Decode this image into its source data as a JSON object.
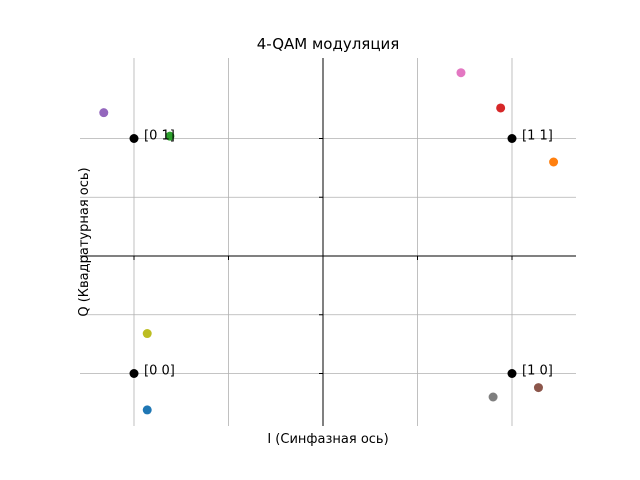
{
  "chart_data": {
    "type": "scatter",
    "title": "4-QAM модуляция",
    "xlabel": "I (Синфазная ось)",
    "ylabel": "Q (Квадратурная ось)",
    "xlim": [
      -1.7,
      1.7
    ],
    "ylim": [
      -1.45,
      1.45
    ],
    "grid": true,
    "xgrid_values": [
      -1,
      -0.5,
      0.5,
      1
    ],
    "ygrid_values": [
      -1,
      -0.5,
      0.5,
      1
    ],
    "constellation": [
      {
        "x": -1,
        "y": 1,
        "label": "[0 1]"
      },
      {
        "x": 1,
        "y": 1,
        "label": "[1 1]"
      },
      {
        "x": -1,
        "y": -1,
        "label": "[0 0]"
      },
      {
        "x": 1,
        "y": -1,
        "label": "[1 0]"
      }
    ],
    "received": [
      {
        "x": -0.93,
        "y": -1.31,
        "color": "#1f77b4"
      },
      {
        "x": 1.22,
        "y": 0.8,
        "color": "#ff7f0e"
      },
      {
        "x": -0.81,
        "y": 1.02,
        "color": "#2ca02c"
      },
      {
        "x": 0.94,
        "y": 1.26,
        "color": "#d62728"
      },
      {
        "x": -1.16,
        "y": 1.22,
        "color": "#9467bd"
      },
      {
        "x": 1.14,
        "y": -1.12,
        "color": "#8c564b"
      },
      {
        "x": 0.73,
        "y": 1.56,
        "color": "#e377c2"
      },
      {
        "x": 0.9,
        "y": -1.2,
        "color": "#7f7f7f"
      },
      {
        "x": -0.93,
        "y": -0.66,
        "color": "#bcbd22"
      }
    ]
  }
}
